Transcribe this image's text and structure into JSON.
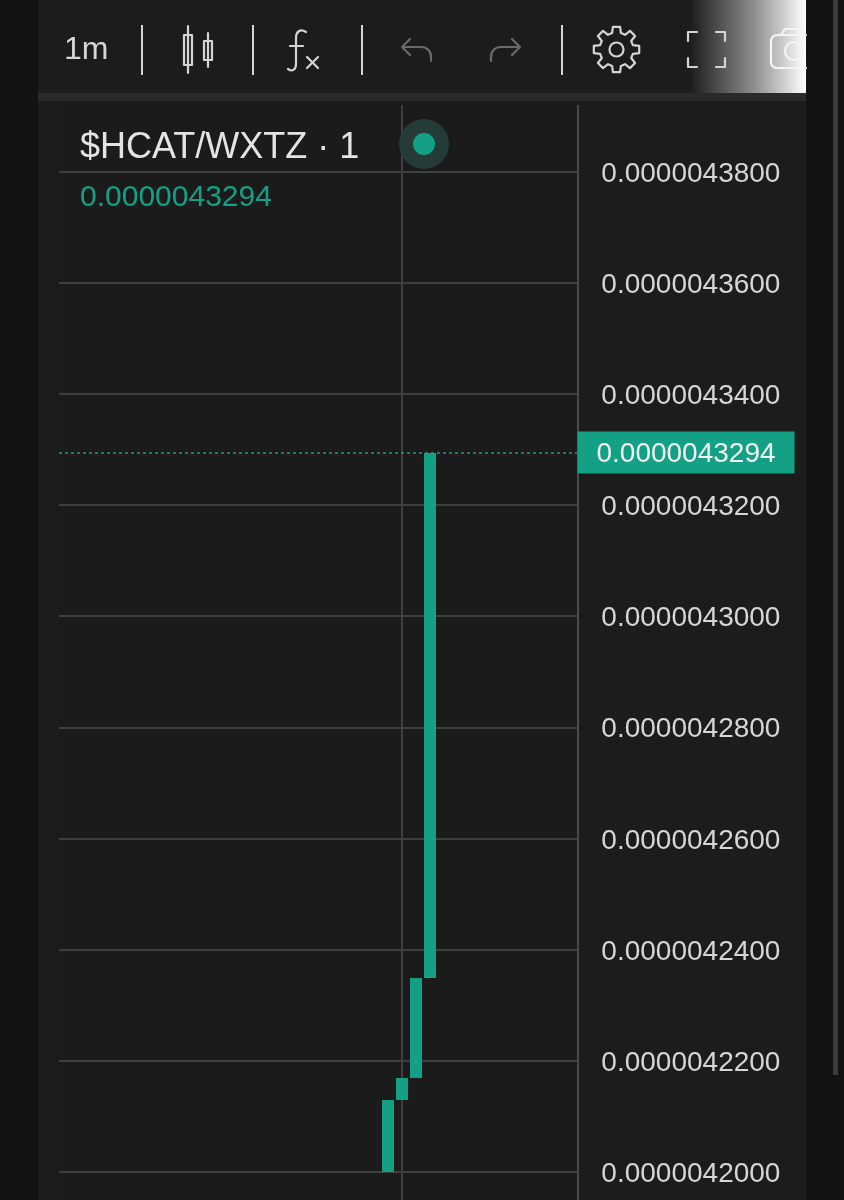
{
  "chart_data": {
    "type": "candlestick",
    "title": "$HCAT/WXTZ · 1",
    "annotations": [
      "1m",
      "0.0000043294"
    ],
    "categories": [
      null,
      null,
      null,
      null,
      null,
      null,
      null,
      null,
      null,
      null,
      null,
      null,
      null,
      null,
      null,
      null,
      null,
      null,
      null,
      null,
      null,
      null,
      null,
      null,
      null,
      null,
      null,
      null,
      null,
      null,
      null,
      null,
      null,
      null,
      null,
      null,
      null
    ],
    "ohlc": [
      null,
      null,
      null,
      null,
      null,
      null,
      null,
      null,
      null,
      null,
      null,
      null,
      null,
      null,
      null,
      null,
      null,
      null,
      null,
      null,
      null,
      null,
      null,
      [
        4.2e-06,
        4.213e-06,
        4.2e-06,
        4.213e-06
      ],
      [
        4.213e-06,
        4.217e-06,
        4.213e-06,
        4.217e-06
      ],
      [
        4.217e-06,
        4.235e-06,
        4.217e-06,
        4.235e-06
      ],
      [
        4.235e-06,
        4.3294e-06,
        4.235e-06,
        4.3294e-06
      ],
      null,
      null,
      null,
      null,
      null,
      null,
      null,
      null,
      null,
      null
    ],
    "color": "#13a085",
    "ylim": [
      4.195e-06,
      4.392e-06
    ],
    "yticks": [
      {
        "value": 4.2e-06,
        "label": "0.0000042000"
      },
      {
        "value": 4.22e-06,
        "label": "0.0000042200"
      },
      {
        "value": 4.24e-06,
        "label": "0.0000042400"
      },
      {
        "value": 4.26e-06,
        "label": "0.0000042600"
      },
      {
        "value": 4.28e-06,
        "label": "0.0000042800"
      },
      {
        "value": 4.3e-06,
        "label": "0.0000043000"
      },
      {
        "value": 4.32e-06,
        "label": "0.0000043200"
      },
      {
        "value": 4.34e-06,
        "label": "0.0000043400"
      },
      {
        "value": 4.36e-06,
        "label": "0.0000043600"
      },
      {
        "value": 4.38e-06,
        "label": "0.0000043800"
      }
    ],
    "ref_lines": [
      {
        "axis": "y",
        "value": 4.3294e-06,
        "label": "0.0000043294",
        "color": "#13a085",
        "line_style": "dotted"
      }
    ],
    "grid": true,
    "tick_labels": "y"
  }
}
